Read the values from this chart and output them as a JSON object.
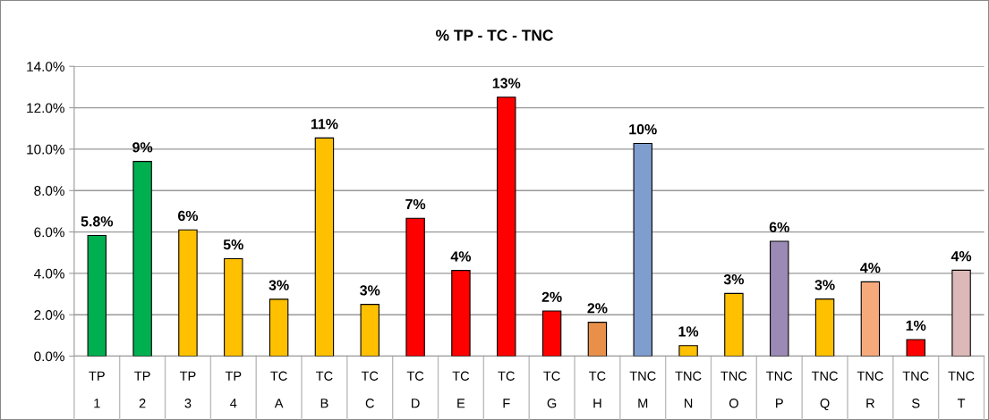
{
  "chart_data": {
    "type": "bar",
    "title": "% TP - TC - TNC",
    "categories": [
      "TP\n1",
      "TP\n2",
      "TP\n3",
      "TP\n4",
      "TC\nA",
      "TC\nB",
      "TC\nC",
      "TC\nD",
      "TC\nE",
      "TC\nF",
      "TC\nG",
      "TC\nH",
      "TNC\nM",
      "TNC\nN",
      "TNC\nO",
      "TNC\nP",
      "TNC\nQ",
      "TNC\nR",
      "TNC\nS",
      "TNC\nT"
    ],
    "values": [
      5.83,
      9.41,
      6.1,
      4.71,
      2.75,
      10.54,
      2.5,
      6.66,
      4.14,
      12.51,
      2.18,
      1.64,
      10.28,
      0.51,
      3.03,
      5.55,
      2.76,
      3.59,
      0.8,
      4.15
    ],
    "value_labels": [
      "5.8%",
      "9%",
      "6%",
      "5%",
      "3%",
      "11%",
      "3%",
      "7%",
      "4%",
      "13%",
      "2%",
      "2%",
      "10%",
      "1%",
      "3%",
      "6%",
      "3%",
      "4%",
      "1%",
      "4%"
    ],
    "colors": [
      "#00b050",
      "#00b050",
      "#ffc000",
      "#ffc000",
      "#ffc000",
      "#ffc000",
      "#ffc000",
      "#ff0000",
      "#ff0000",
      "#ff0000",
      "#ff0000",
      "#e8904a",
      "#7f9ece",
      "#ffc000",
      "#ffc000",
      "#9b8ab5",
      "#ffc000",
      "#f6aa7c",
      "#ff0000",
      "#ddb8b8"
    ],
    "ylim": [
      0,
      14
    ],
    "yticks": [
      {
        "value": 0,
        "label": "0.0%"
      },
      {
        "value": 2,
        "label": "2.0%"
      },
      {
        "value": 4,
        "label": "4.0%"
      },
      {
        "value": 6,
        "label": "6.0%"
      },
      {
        "value": 8,
        "label": "8.0%"
      },
      {
        "value": 10,
        "label": "10.0%"
      },
      {
        "value": 12,
        "label": "12.0%"
      },
      {
        "value": 14,
        "label": "14.0%"
      }
    ],
    "grid": "y"
  }
}
